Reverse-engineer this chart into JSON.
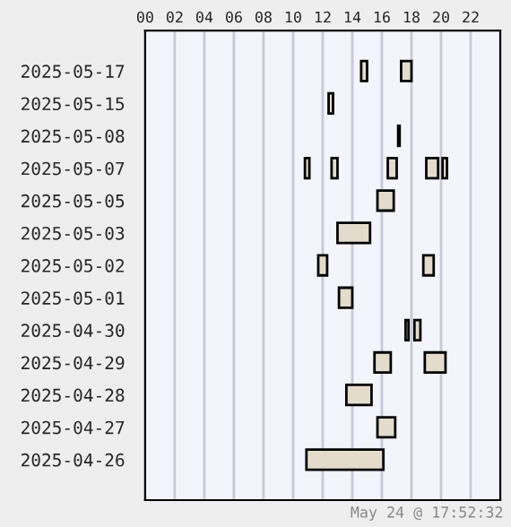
{
  "chart_data": {
    "type": "bar",
    "orientation": "horizontal",
    "categories": [
      "2025-05-17",
      "2025-05-15",
      "2025-05-08",
      "2025-05-07",
      "2025-05-05",
      "2025-05-03",
      "2025-05-02",
      "2025-05-01",
      "2025-04-30",
      "2025-04-29",
      "2025-04-28",
      "2025-04-27",
      "2025-04-26"
    ],
    "series": [
      {
        "color": "#e3dccd",
        "base": [
          14.6,
          12.4,
          17.1,
          10.8,
          15.7,
          13.0,
          11.7,
          13.1,
          17.6,
          15.5,
          13.6,
          15.7,
          10.9
        ],
        "values": [
          0.4,
          0.3,
          0.1,
          0.3,
          1.1,
          2.2,
          0.6,
          0.9,
          0.2,
          1.1,
          1.7,
          1.2,
          5.2
        ]
      },
      {
        "color": "#e3dccd",
        "base": [
          17.3,
          null,
          null,
          12.6,
          null,
          null,
          18.8,
          null,
          18.2,
          18.9,
          null,
          null,
          null
        ],
        "values": [
          0.7,
          null,
          null,
          0.4,
          null,
          null,
          0.7,
          null,
          0.4,
          1.4,
          null,
          null,
          null
        ]
      },
      {
        "color": "#e3dccd",
        "base": [
          null,
          null,
          null,
          16.4,
          null,
          null,
          null,
          null,
          null,
          null,
          null,
          null,
          null
        ],
        "values": [
          null,
          null,
          null,
          0.6,
          null,
          null,
          null,
          null,
          null,
          null,
          null,
          null,
          null
        ]
      },
      {
        "color": "#e3dccd",
        "base": [
          null,
          null,
          null,
          19.0,
          null,
          null,
          null,
          null,
          null,
          null,
          null,
          null,
          null
        ],
        "values": [
          null,
          null,
          null,
          0.8,
          null,
          null,
          null,
          null,
          null,
          null,
          null,
          null,
          null
        ]
      },
      {
        "color": "#e3dccd",
        "base": [
          null,
          null,
          null,
          20.1,
          null,
          null,
          null,
          null,
          null,
          null,
          null,
          null,
          null
        ],
        "values": [
          null,
          null,
          null,
          0.3,
          null,
          null,
          null,
          null,
          null,
          null,
          null,
          null,
          null
        ]
      }
    ],
    "xlim": [
      0,
      24
    ],
    "xticks": [
      {
        "value": 0,
        "label": "00"
      },
      {
        "value": 2,
        "label": "02"
      },
      {
        "value": 4,
        "label": "04"
      },
      {
        "value": 6,
        "label": "06"
      },
      {
        "value": 8,
        "label": "08"
      },
      10,
      12,
      14,
      16,
      18,
      20,
      22
    ],
    "grid": "x",
    "annotations": [
      "May 24 @ 17:52:32"
    ]
  }
}
